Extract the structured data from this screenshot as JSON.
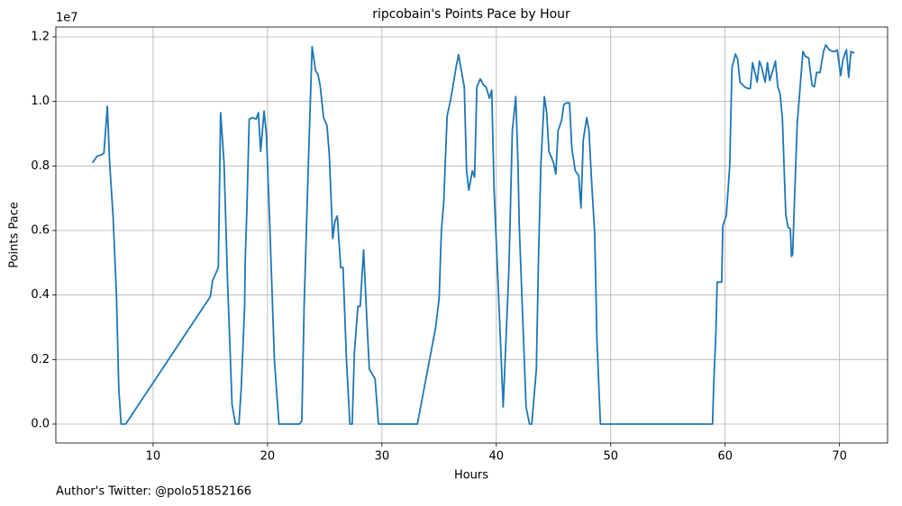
{
  "chart_data": {
    "type": "line",
    "title": "ripcobain's Points Pace by Hour",
    "xlabel": "Hours",
    "ylabel": "Points Pace",
    "offset_label": "1e7",
    "footnote": "Author's Twitter: @polo51852166",
    "color": "#1f77b4",
    "grid": true,
    "xlim": [
      1.5,
      74.2
    ],
    "ylim": [
      -0.0586,
      1.2307
    ],
    "xticks": [
      10,
      20,
      30,
      40,
      50,
      60,
      70
    ],
    "yticks": [
      {
        "value": 0,
        "label": "0.0"
      },
      0.2,
      0.4,
      0.6,
      0.8,
      {
        "value": 1,
        "label": "1.0"
      },
      1.2
    ],
    "x": [
      4.7,
      5.1,
      5.5,
      5.7,
      6.0,
      6.2,
      6.5,
      6.8,
      7.0,
      7.2,
      7.6,
      15.0,
      15.2,
      15.7,
      15.9,
      16.2,
      16.5,
      16.9,
      17.2,
      17.5,
      17.7,
      18.0,
      18.05,
      18.2,
      18.4,
      18.7,
      19.0,
      19.2,
      19.4,
      19.7,
      19.9,
      20.2,
      20.6,
      21.0,
      22.8,
      23.0,
      23.2,
      23.6,
      23.9,
      24.2,
      24.4,
      24.6,
      24.9,
      25.2,
      25.4,
      25.7,
      25.9,
      26.1,
      26.4,
      26.6,
      26.9,
      27.2,
      27.4,
      27.6,
      27.9,
      28.1,
      28.4,
      28.7,
      28.9,
      29.4,
      29.7,
      33.1,
      34.7,
      35.0,
      35.2,
      35.4,
      35.7,
      36.0,
      36.2,
      36.5,
      36.7,
      36.9,
      37.2,
      37.4,
      37.6,
      37.9,
      38.1,
      38.3,
      38.6,
      38.9,
      39.1,
      39.4,
      39.6,
      39.8,
      40.2,
      40.6,
      41.1,
      41.4,
      41.7,
      41.9,
      42.0,
      42.6,
      42.9,
      43.1,
      43.5,
      43.7,
      43.9,
      44.2,
      44.4,
      44.6,
      45.0,
      45.2,
      45.4,
      45.7,
      45.9,
      46.1,
      46.4,
      46.6,
      46.9,
      47.2,
      47.4,
      47.6,
      47.9,
      48.1,
      48.3,
      48.6,
      48.8,
      49.1,
      58.9,
      59.0,
      59.2,
      59.3,
      59.4,
      59.7,
      59.8,
      60.1,
      60.4,
      60.6,
      60.9,
      61.1,
      61.3,
      61.7,
      62.0,
      62.2,
      62.4,
      62.8,
      63.0,
      63.2,
      63.5,
      63.7,
      63.9,
      64.2,
      64.4,
      64.6,
      64.8,
      65.0,
      65.3,
      65.5,
      65.7,
      65.8,
      65.9,
      66.1,
      66.3,
      66.5,
      66.8,
      67.0,
      67.3,
      67.6,
      67.8,
      68.0,
      68.3,
      68.6,
      68.8,
      69.1,
      69.4,
      69.6,
      69.8,
      70.1,
      70.3,
      70.6,
      70.8,
      71.0,
      71.3
    ],
    "values": [
      0.81,
      0.83,
      0.835,
      0.84,
      0.985,
      0.81,
      0.645,
      0.395,
      0.11,
      0,
      0,
      0.395,
      0.445,
      0.485,
      0.965,
      0.81,
      0.45,
      0.06,
      0,
      0,
      0.11,
      0.365,
      0.505,
      0.67,
      0.945,
      0.95,
      0.945,
      0.965,
      0.845,
      0.97,
      0.9,
      0.615,
      0.2,
      0,
      0,
      0.01,
      0.365,
      0.84,
      1.17,
      1.095,
      1.085,
      1.05,
      0.95,
      0.925,
      0.835,
      0.575,
      0.63,
      0.645,
      0.485,
      0.485,
      0.2,
      0,
      0,
      0.225,
      0.365,
      0.365,
      0.54,
      0.31,
      0.17,
      0.14,
      0,
      0,
      0.3,
      0.39,
      0.6,
      0.685,
      0.955,
      1.005,
      1.045,
      1.11,
      1.145,
      1.105,
      1.045,
      0.785,
      0.725,
      0.785,
      0.765,
      1.045,
      1.07,
      1.05,
      1.045,
      1.01,
      1.035,
      0.73,
      0.395,
      0.053,
      0.48,
      0.91,
      1.015,
      0.8,
      0.62,
      0.053,
      0,
      0,
      0.17,
      0.535,
      0.81,
      1.015,
      0.965,
      0.845,
      0.81,
      0.775,
      0.91,
      0.94,
      0.99,
      0.995,
      0.995,
      0.855,
      0.785,
      0.77,
      0.67,
      0.88,
      0.95,
      0.91,
      0.77,
      0.59,
      0.255,
      0,
      0,
      0.12,
      0.29,
      0.44,
      0.44,
      0.44,
      0.615,
      0.645,
      0.8,
      1.105,
      1.147,
      1.13,
      1.06,
      1.045,
      1.04,
      1.04,
      1.12,
      1.06,
      1.125,
      1.105,
      1.06,
      1.12,
      1.065,
      1.1,
      1.125,
      1.045,
      1.025,
      0.95,
      0.65,
      0.61,
      0.605,
      0.52,
      0.525,
      0.73,
      0.93,
      1.02,
      1.155,
      1.14,
      1.135,
      1.05,
      1.045,
      1.09,
      1.09,
      1.155,
      1.175,
      1.16,
      1.155,
      1.155,
      1.16,
      1.08,
      1.13,
      1.16,
      1.075,
      1.155,
      1.15
    ]
  }
}
